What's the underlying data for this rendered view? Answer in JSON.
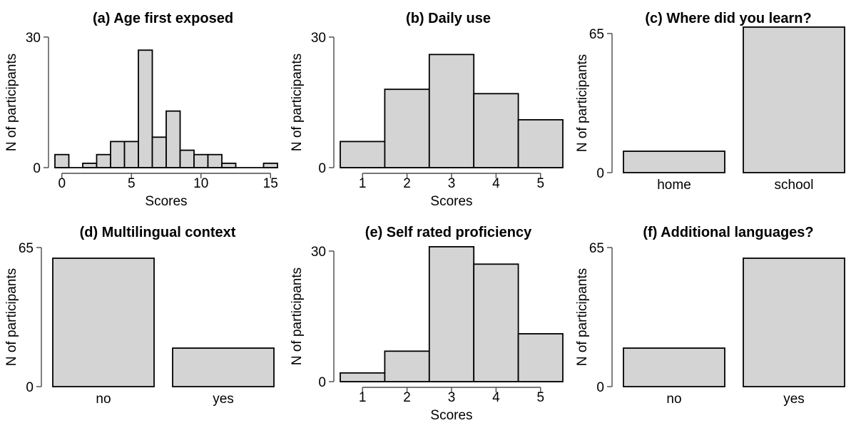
{
  "figure": {
    "background": "#ffffff",
    "bar_fill": "#d4d4d4",
    "bar_stroke": "#000000",
    "axis_color": "#4a4a4a",
    "text_color": "#000000"
  },
  "chart_data": [
    {
      "type": "histogram",
      "title": "(a) Age first exposed",
      "ylabel": "N of participants",
      "xlabel": "Scores",
      "ylim": [
        0,
        30
      ],
      "yticks": [
        0,
        30
      ],
      "xticks": [
        0,
        5,
        10,
        15
      ],
      "x_range": [
        -0.5,
        15.5
      ],
      "bin_centers": [
        0,
        1,
        2,
        3,
        4,
        5,
        6,
        7,
        8,
        9,
        10,
        11,
        12,
        13,
        14,
        15
      ],
      "counts": [
        3,
        0,
        1,
        3,
        6,
        6,
        27,
        7,
        13,
        4,
        3,
        3,
        1,
        0,
        0,
        1
      ]
    },
    {
      "type": "histogram",
      "title": "(b) Daily use",
      "ylabel": "N of participants",
      "xlabel": "Scores",
      "ylim": [
        0,
        30
      ],
      "yticks": [
        0,
        30
      ],
      "xticks": [
        1,
        2,
        3,
        4,
        5
      ],
      "x_range": [
        0.5,
        5.5
      ],
      "bin_centers": [
        1,
        2,
        3,
        4,
        5
      ],
      "counts": [
        6,
        18,
        26,
        17,
        11
      ]
    },
    {
      "type": "bar",
      "title": "(c) Where did you learn?",
      "ylabel": "N of participants",
      "ylim": [
        0,
        65
      ],
      "yticks": [
        0,
        65
      ],
      "categories": [
        "home",
        "school"
      ],
      "values": [
        10,
        68
      ]
    },
    {
      "type": "bar",
      "title": "(d) Multilingual context",
      "ylabel": "N of participants",
      "ylim": [
        0,
        65
      ],
      "yticks": [
        0,
        65
      ],
      "categories": [
        "no",
        "yes"
      ],
      "values": [
        60,
        18
      ]
    },
    {
      "type": "histogram",
      "title": "(e) Self rated proficiency",
      "ylabel": "N of participants",
      "xlabel": "Scores",
      "ylim": [
        0,
        30
      ],
      "yticks": [
        0,
        30
      ],
      "xticks": [
        1,
        2,
        3,
        4,
        5
      ],
      "x_range": [
        0.5,
        5.5
      ],
      "bin_centers": [
        1,
        2,
        3,
        4,
        5
      ],
      "counts": [
        2,
        7,
        31,
        27,
        11
      ]
    },
    {
      "type": "bar",
      "title": "(f) Additional languages?",
      "ylabel": "N of participants",
      "ylim": [
        0,
        65
      ],
      "yticks": [
        0,
        65
      ],
      "categories": [
        "no",
        "yes"
      ],
      "values": [
        18,
        60
      ]
    }
  ]
}
